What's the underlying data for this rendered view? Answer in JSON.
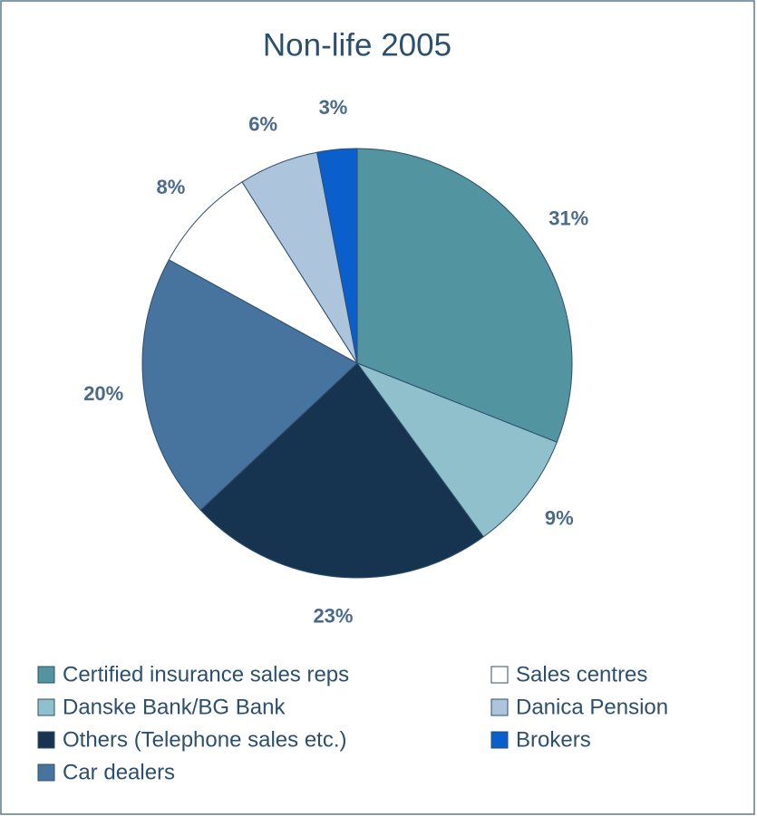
{
  "chart_data": {
    "type": "pie",
    "title": "Non-life 2005",
    "categories": [
      "Certified insurance sales reps",
      "Danske Bank/BG Bank",
      "Others (Telephone sales etc.)",
      "Car dealers",
      "Sales centres",
      "Danica Pension",
      "Brokers"
    ],
    "values": [
      31,
      9,
      23,
      20,
      8,
      6,
      3
    ],
    "value_labels": [
      "31%",
      "9%",
      "23%",
      "20%",
      "8%",
      "6%",
      "3%"
    ],
    "colors": [
      "#5294a0",
      "#8fc0cc",
      "#163450",
      "#46749f",
      "#ffffff",
      "#adc4dd",
      "#0a5fcc"
    ]
  }
}
